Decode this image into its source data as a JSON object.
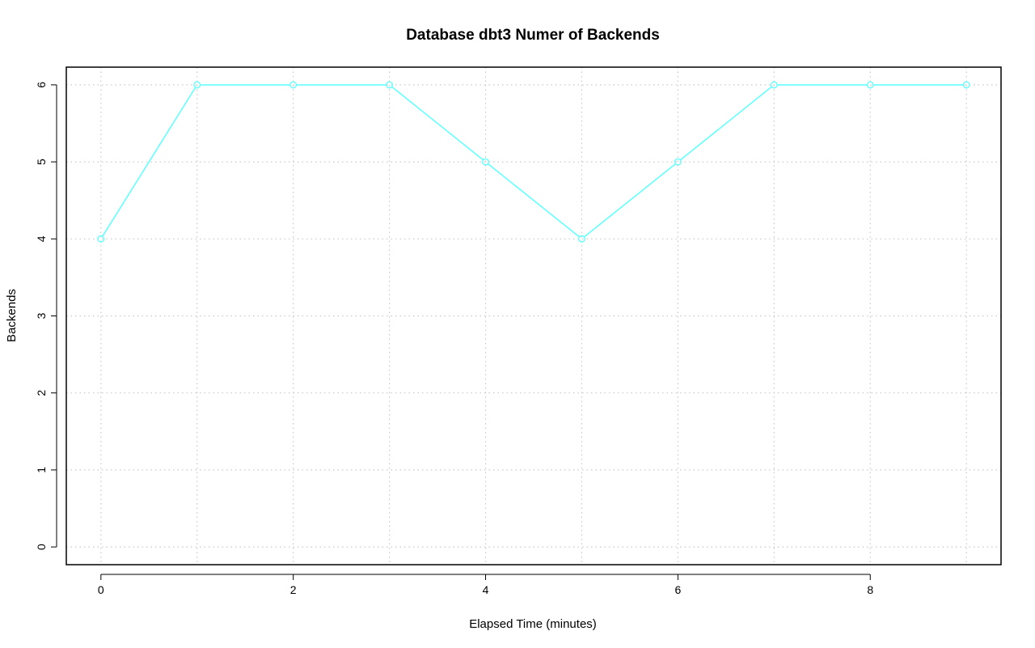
{
  "chart_data": {
    "type": "line",
    "title": "Database dbt3 Numer of Backends",
    "xlabel": "Elapsed Time (minutes)",
    "ylabel": "Backends",
    "x": [
      0,
      1,
      2,
      3,
      4,
      5,
      6,
      7,
      8,
      9
    ],
    "series": [
      {
        "values": [
          4,
          6,
          6,
          6,
          5,
          4,
          5,
          6,
          6,
          6
        ],
        "color": "#66ffff"
      }
    ],
    "xlim": [
      -0.36,
      9.36
    ],
    "ylim": [
      -0.23,
      6.23
    ],
    "xticks": [
      0,
      2,
      4,
      6,
      8
    ],
    "yticks": [
      0,
      1,
      2,
      3,
      4,
      5,
      6
    ],
    "xtick_labels": [
      "0",
      "2",
      "4",
      "6",
      "8"
    ],
    "ytick_labels": [
      "0",
      "1",
      "2",
      "3",
      "4",
      "5",
      "6"
    ],
    "grid": true,
    "grid_x": [
      0,
      1,
      2,
      3,
      4,
      5,
      6,
      7,
      8,
      9
    ],
    "grid_y": [
      0,
      1,
      2,
      3,
      4,
      5,
      6
    ],
    "marker": "open-circle"
  }
}
